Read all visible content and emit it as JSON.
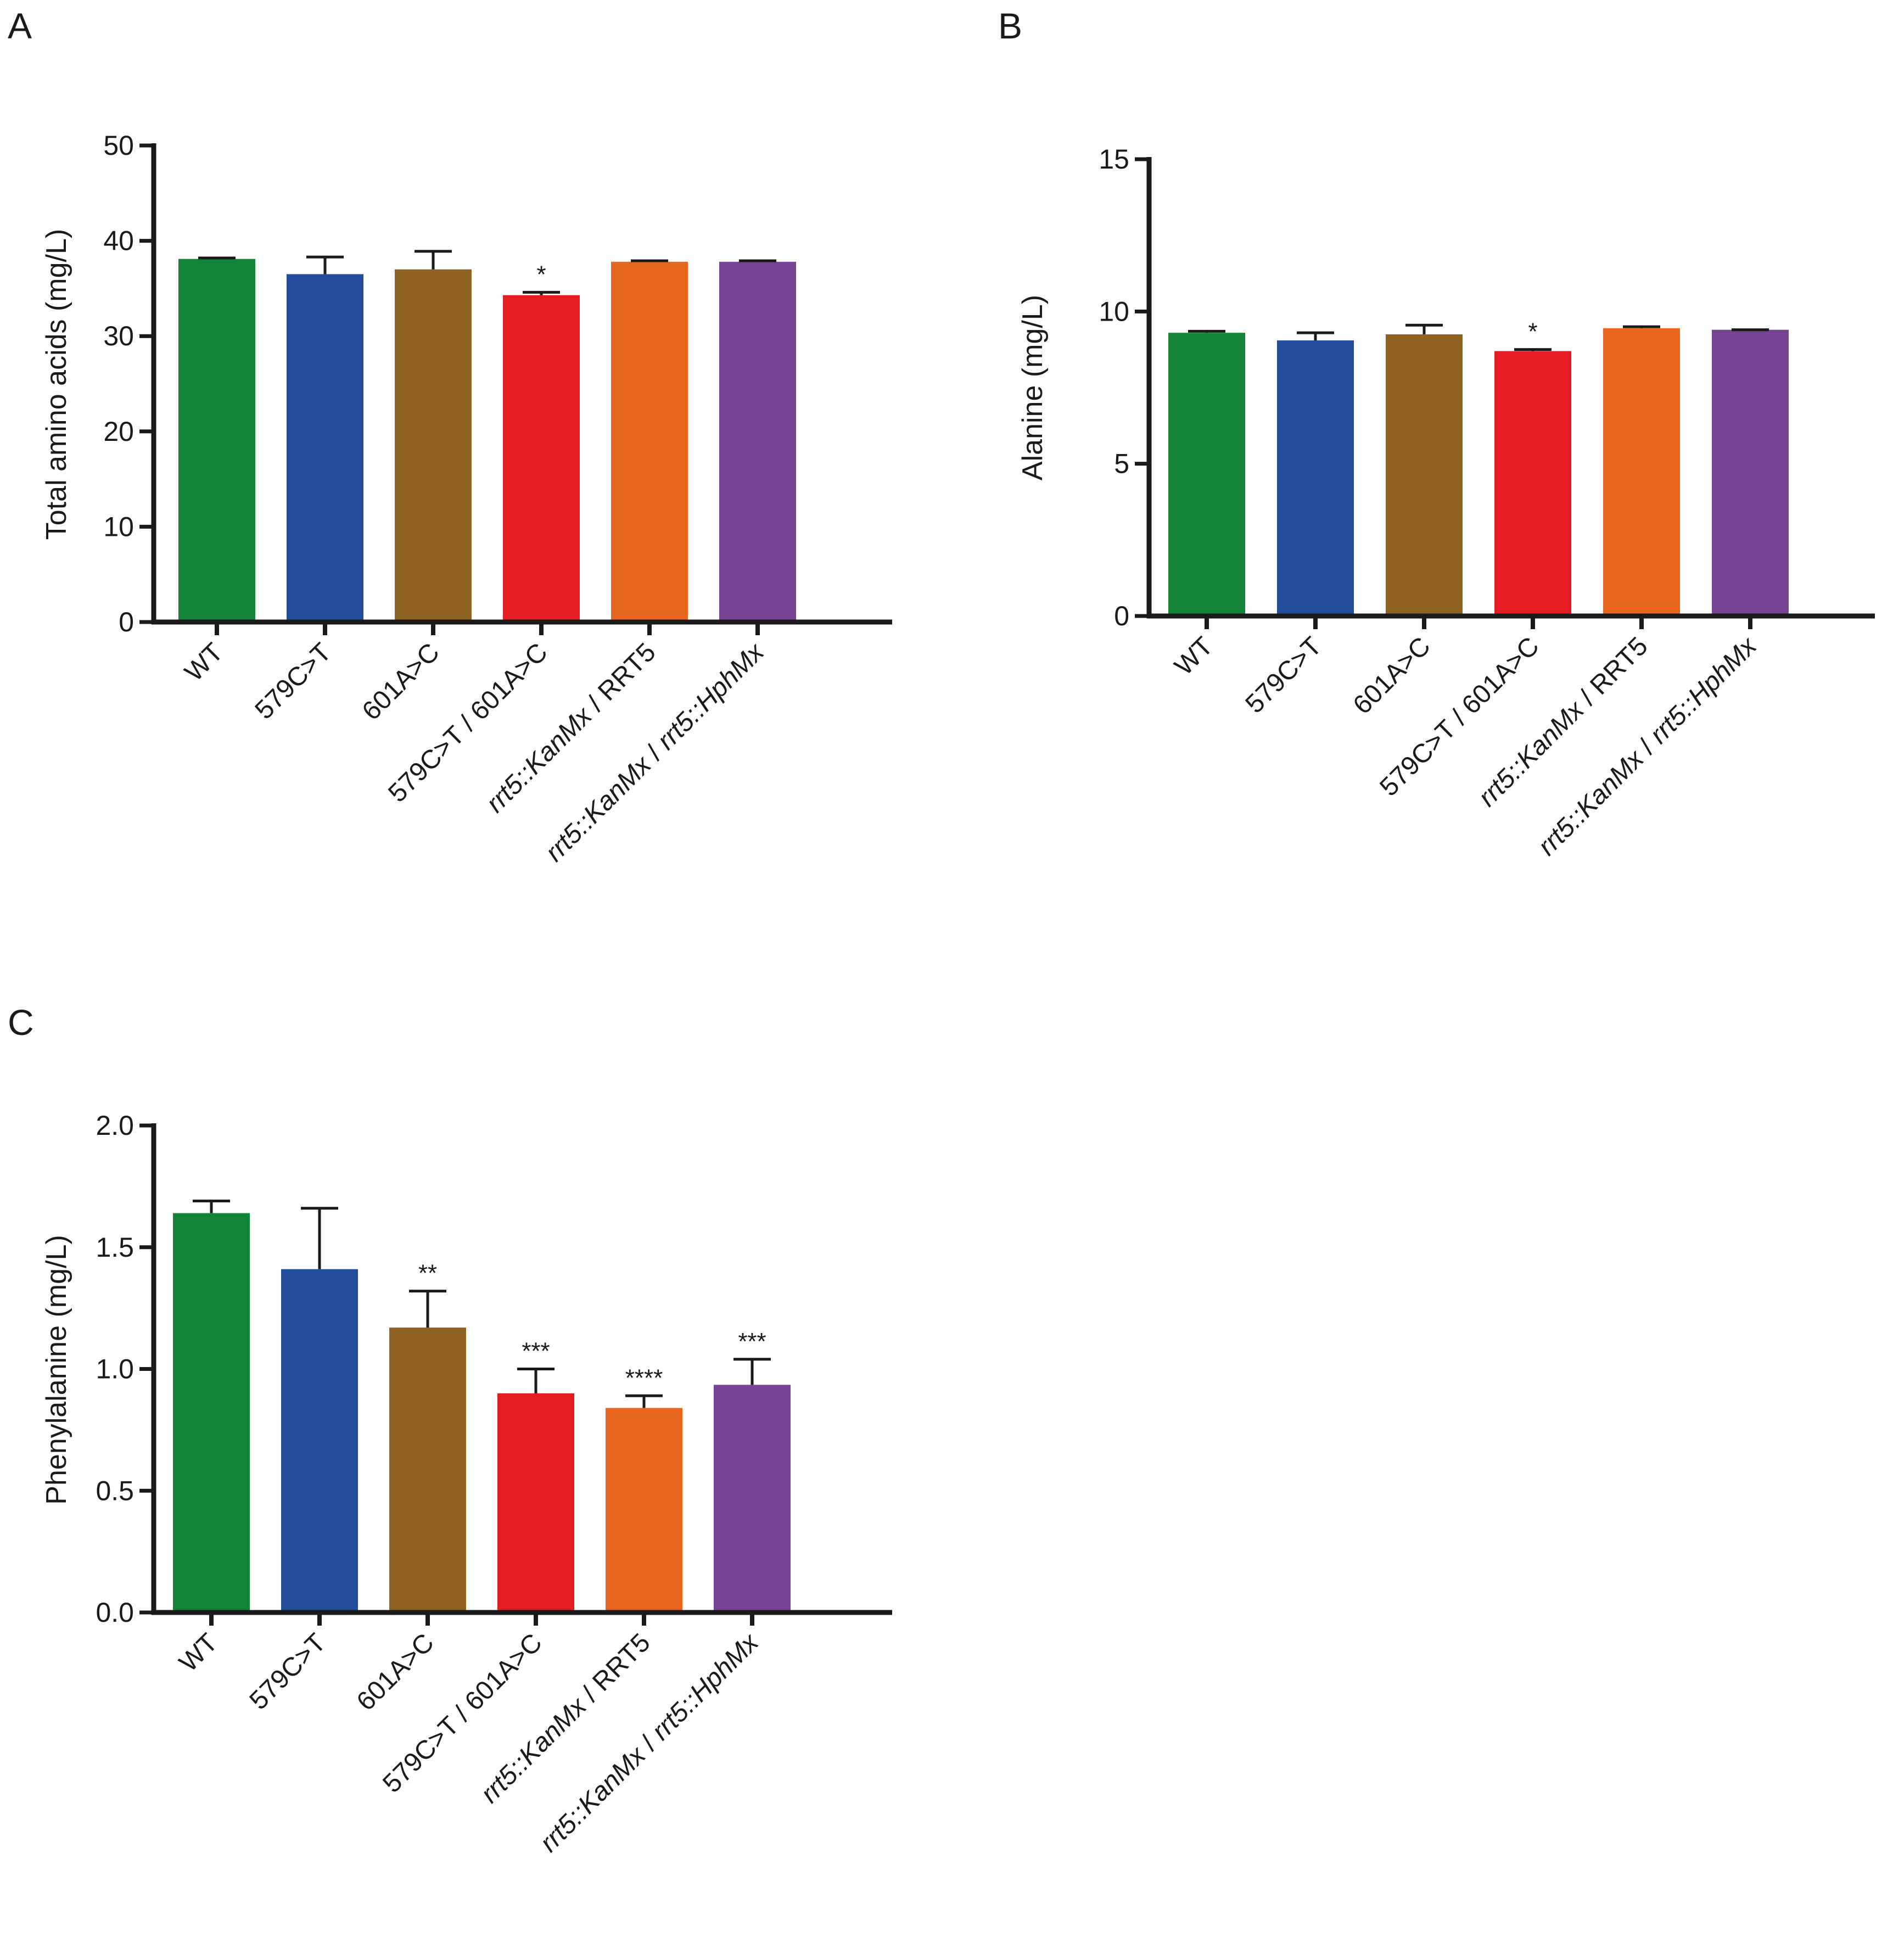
{
  "figure": {
    "background": "#ffffff",
    "axis_color": "#1a1a1a"
  },
  "chart_data": [
    {
      "id": "A",
      "panel_label": "A",
      "type": "bar",
      "categories": [
        [
          {
            "t": "WT",
            "i": false
          }
        ],
        [
          {
            "t": "579C>T",
            "i": false
          }
        ],
        [
          {
            "t": "601A>C",
            "i": false
          }
        ],
        [
          {
            "t": "579C>T / 601A>C",
            "i": false
          }
        ],
        [
          {
            "t": "rrt5::KanMx",
            "i": true
          },
          {
            "t": " / RRT5",
            "i": false
          }
        ],
        [
          {
            "t": "rrt5::KanMx",
            "i": true
          },
          {
            "t": " / ",
            "i": false
          },
          {
            "t": "rrt5::HphMx",
            "i": true
          }
        ]
      ],
      "values": [
        38.1,
        36.5,
        37.0,
        34.3,
        37.8,
        37.8
      ],
      "errors": [
        0.1,
        1.8,
        1.9,
        0.3,
        0.1,
        0.1
      ],
      "significance": [
        "",
        "",
        "",
        "*",
        "",
        ""
      ],
      "colors": [
        "#128437",
        "#224e9b",
        "#8d6223",
        "#e31d23",
        "#e8651f",
        "#794495"
      ],
      "ylabel": "Total amino acids (mg/L)",
      "ylim": [
        0,
        50
      ],
      "yticks": [
        0,
        10,
        20,
        30,
        40,
        50
      ],
      "ytick_labels": [
        "0",
        "10",
        "20",
        "30",
        "40",
        "50"
      ]
    },
    {
      "id": "B",
      "panel_label": "B",
      "type": "bar",
      "categories": [
        [
          {
            "t": "WT",
            "i": false
          }
        ],
        [
          {
            "t": "579C>T",
            "i": false
          }
        ],
        [
          {
            "t": "601A>C",
            "i": false
          }
        ],
        [
          {
            "t": "579C>T / 601A>C",
            "i": false
          }
        ],
        [
          {
            "t": "rrt5::KanMx",
            "i": true
          },
          {
            "t": " / RRT5",
            "i": false
          }
        ],
        [
          {
            "t": "rrt5::KanMx",
            "i": true
          },
          {
            "t": " / ",
            "i": false
          },
          {
            "t": "rrt5::HphMx",
            "i": true
          }
        ]
      ],
      "values": [
        9.3,
        9.05,
        9.25,
        8.7,
        9.45,
        9.4
      ],
      "errors": [
        0.05,
        0.25,
        0.3,
        0.05,
        0.05,
        0.0
      ],
      "significance": [
        "",
        "",
        "",
        "*",
        "",
        ""
      ],
      "colors": [
        "#128437",
        "#224e9b",
        "#8d6223",
        "#e31d23",
        "#e8651f",
        "#794495"
      ],
      "ylabel": "Alanine (mg/L)",
      "ylim": [
        0,
        15
      ],
      "yticks": [
        0,
        5,
        10,
        15
      ],
      "ytick_labels": [
        "0",
        "5",
        "10",
        "15"
      ]
    },
    {
      "id": "C",
      "panel_label": "C",
      "type": "bar",
      "categories": [
        [
          {
            "t": "WT",
            "i": false
          }
        ],
        [
          {
            "t": "579C>T",
            "i": false
          }
        ],
        [
          {
            "t": "601A>C",
            "i": false
          }
        ],
        [
          {
            "t": "579C>T / 601A>C",
            "i": false
          }
        ],
        [
          {
            "t": "rrt5::KanMx",
            "i": true
          },
          {
            "t": " / RRT5",
            "i": false
          }
        ],
        [
          {
            "t": "rrt5::KanMx",
            "i": true
          },
          {
            "t": " / ",
            "i": false
          },
          {
            "t": "rrt5::HphMx",
            "i": true
          }
        ]
      ],
      "values": [
        1.64,
        1.41,
        1.17,
        0.9,
        0.84,
        0.935
      ],
      "errors": [
        0.05,
        0.25,
        0.15,
        0.1,
        0.05,
        0.105
      ],
      "significance": [
        "",
        "",
        "**",
        "***",
        "****",
        "***"
      ],
      "colors": [
        "#128437",
        "#224e9b",
        "#8d6223",
        "#e31d23",
        "#e8651f",
        "#794495"
      ],
      "ylabel": "Phenylalanine (mg/L)",
      "ylim": [
        0,
        2.0
      ],
      "yticks": [
        0,
        0.5,
        1.0,
        1.5,
        2.0
      ],
      "ytick_labels": [
        "0.0",
        "0.5",
        "1.0",
        "1.5",
        "2.0"
      ]
    }
  ]
}
